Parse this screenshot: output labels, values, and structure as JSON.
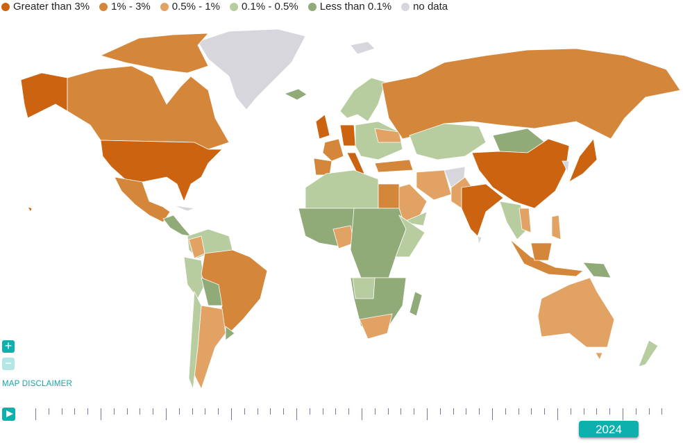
{
  "legend": [
    {
      "label": "Greater than 3%",
      "color": "#cc6310"
    },
    {
      "label": "1% - 3%",
      "color": "#d4863a"
    },
    {
      "label": "0.5% - 1%",
      "color": "#e2a263"
    },
    {
      "label": "0.1% - 0.5%",
      "color": "#b7cda0"
    },
    {
      "label": "Less than 0.1%",
      "color": "#90aa78"
    },
    {
      "label": "no data",
      "color": "#d6d6dc"
    }
  ],
  "controls": {
    "zoom_in": "+",
    "zoom_out": "−",
    "disclaimer": "MAP DISCLAIMER"
  },
  "timeline": {
    "selected_year": "2024",
    "icon": "play-icon"
  }
}
